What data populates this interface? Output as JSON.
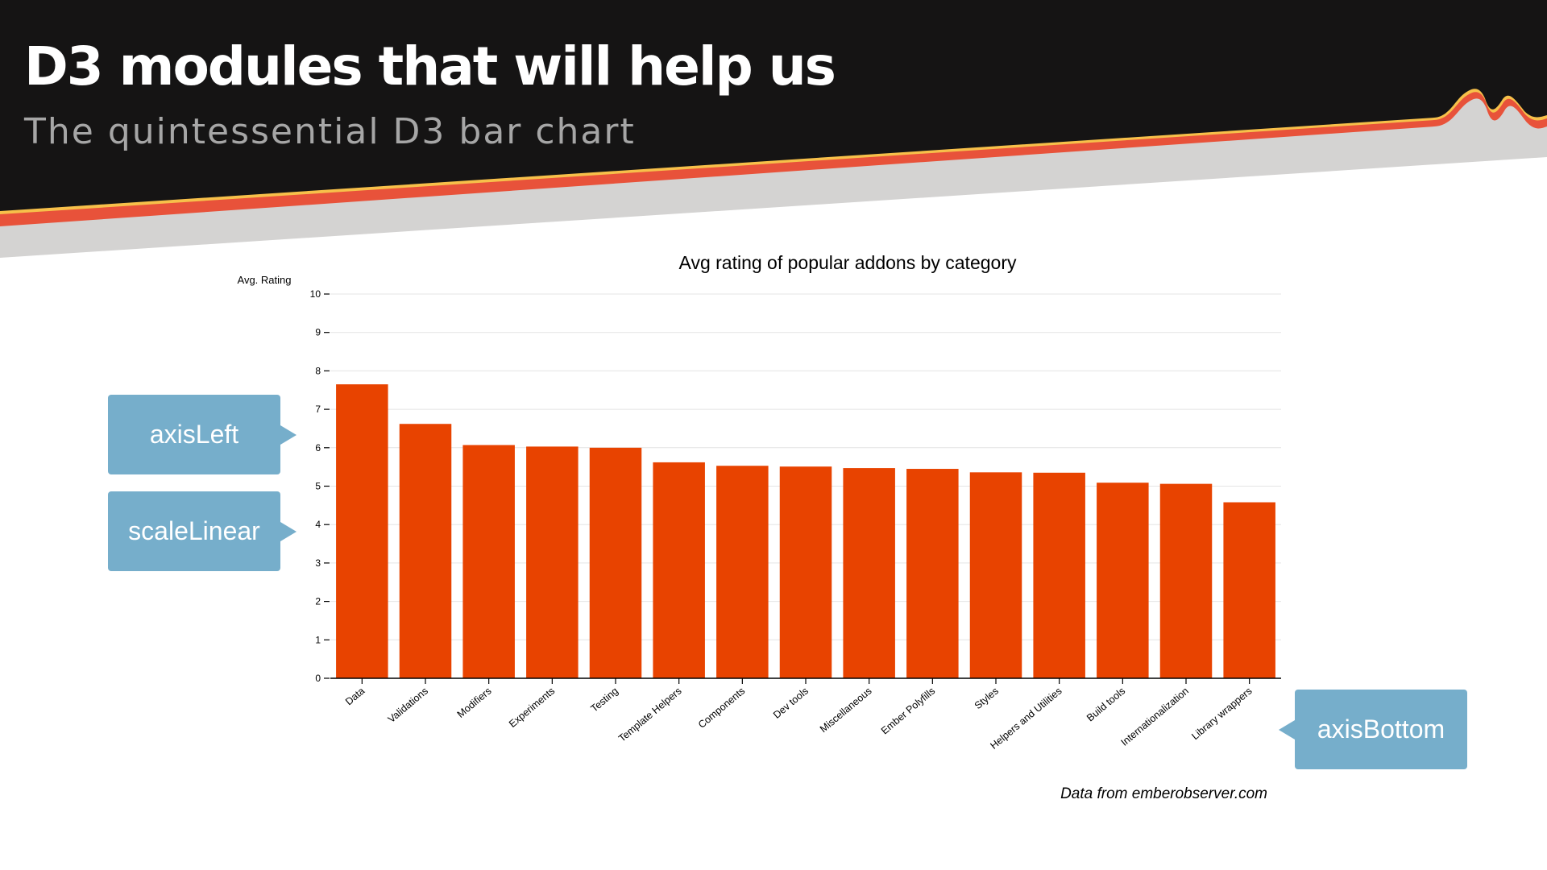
{
  "slide": {
    "title": "D3 modules that will help us",
    "subtitle": "The quintessential D3 bar chart",
    "attribution": "Data from emberobserver.com"
  },
  "colors": {
    "banner": "#151414",
    "band_light": "#d4d3d2",
    "band_red": "#e8523a",
    "band_yellow": "#f7c04a",
    "bar": "#e84300",
    "callout": "#76aecb"
  },
  "callouts": {
    "axis_left": "axisLeft",
    "scale_linear": "scaleLinear",
    "axis_bottom": "axisBottom"
  },
  "chart_data": {
    "type": "bar",
    "title": "Avg rating of popular addons by category",
    "ylabel": "Avg. Rating",
    "xlabel": "",
    "ylim": [
      0,
      10
    ],
    "yticks": [
      "0",
      "1",
      "2",
      "3",
      "4",
      "5",
      "6",
      "7",
      "8",
      "9",
      "10"
    ],
    "grid": true,
    "categories": [
      "Data",
      "Validations",
      "Modifiers",
      "Experiments",
      "Testing",
      "Template Helpers",
      "Components",
      "Dev tools",
      "Miscellaneous",
      "Ember Polyfills",
      "Styles",
      "Helpers and Utilities",
      "Build tools",
      "Internationalization",
      "Library wrappers"
    ],
    "values": [
      7.65,
      6.62,
      6.07,
      6.03,
      6.0,
      5.62,
      5.53,
      5.51,
      5.47,
      5.45,
      5.36,
      5.35,
      5.09,
      5.06,
      4.58
    ]
  }
}
